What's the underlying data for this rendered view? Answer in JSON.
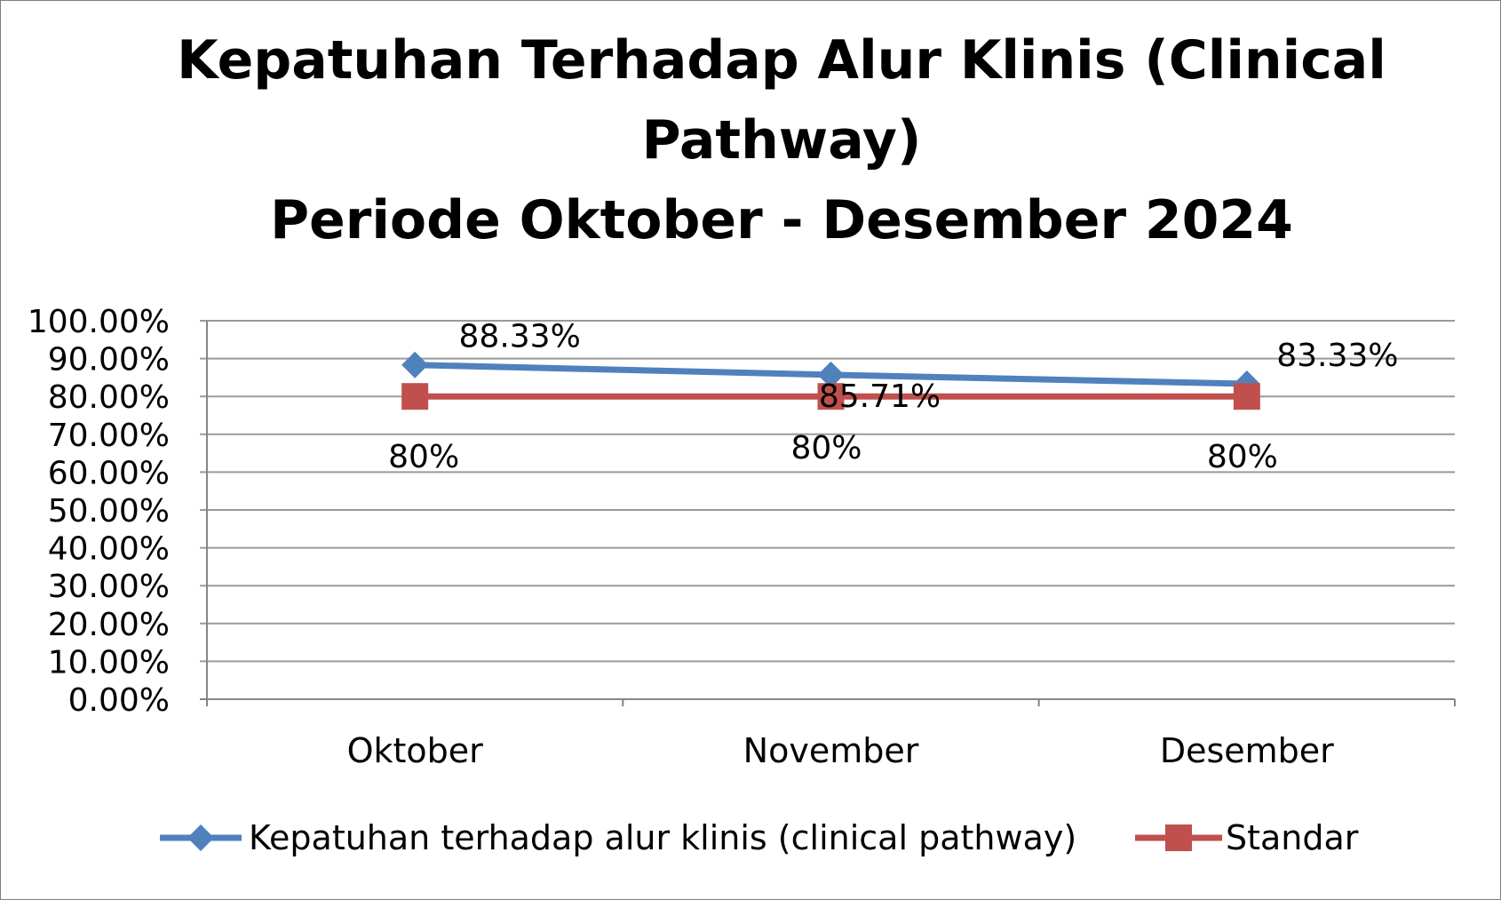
{
  "chart_data": {
    "type": "line",
    "title_lines": [
      "Kepatuhan Terhadap Alur Klinis (Clinical",
      "Pathway)",
      "Periode Oktober - Desember 2024"
    ],
    "categories": [
      "Oktober",
      "November",
      "Desember"
    ],
    "y_ticks": [
      "0.00%",
      "10.00%",
      "20.00%",
      "30.00%",
      "40.00%",
      "50.00%",
      "60.00%",
      "70.00%",
      "80.00%",
      "90.00%",
      "100.00%"
    ],
    "ylim": [
      0,
      100
    ],
    "grid": true,
    "legend_position": "bottom",
    "series": [
      {
        "name": "Kepatuhan terhadap alur klinis (clinical pathway)",
        "values": [
          88.33,
          85.71,
          83.33
        ],
        "labels": [
          "88.33%",
          "85.71%",
          "83.33%"
        ],
        "color": "#4f81bd",
        "marker": "diamond"
      },
      {
        "name": "Standar",
        "values": [
          80,
          80,
          80
        ],
        "labels": [
          "80%",
          "80%",
          "80%"
        ],
        "color": "#c0504d",
        "marker": "square"
      }
    ]
  }
}
